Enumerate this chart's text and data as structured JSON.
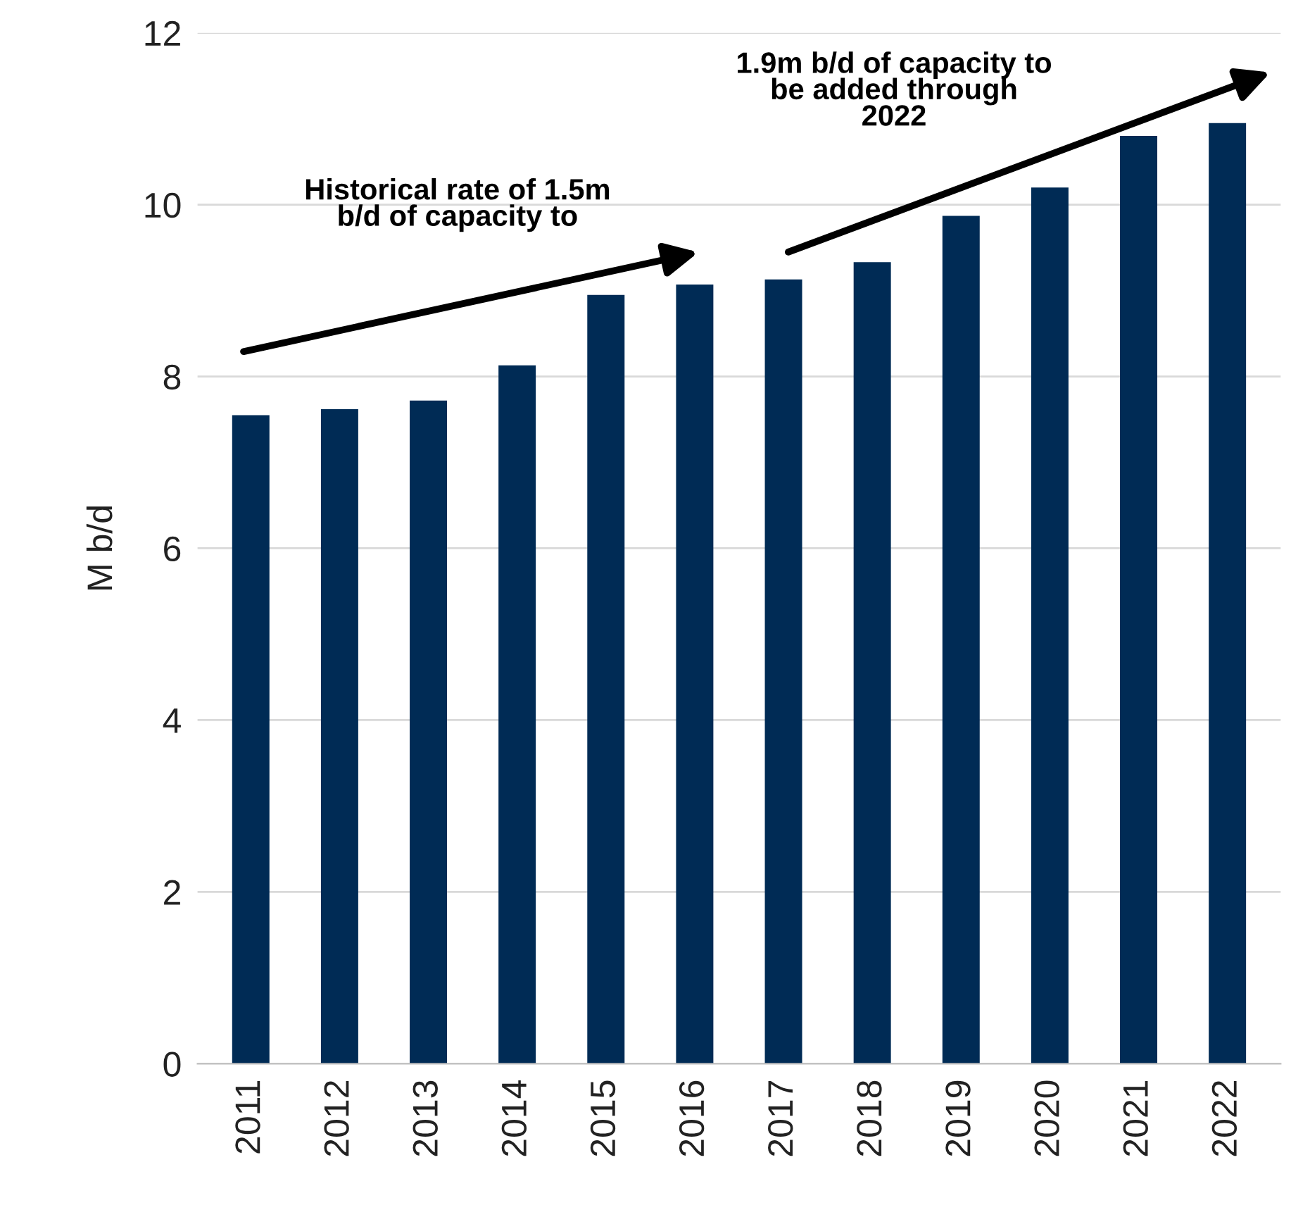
{
  "chart_data": {
    "type": "bar",
    "ylabel": "M b/d",
    "categories": [
      "2011",
      "2012",
      "2013",
      "2014",
      "2015",
      "2016",
      "2017",
      "2018",
      "2019",
      "2020",
      "2021",
      "2022"
    ],
    "values": [
      7.55,
      7.62,
      7.72,
      8.13,
      8.95,
      9.07,
      9.13,
      9.33,
      9.87,
      10.2,
      10.8,
      10.95
    ],
    "color": "#002b55",
    "ylim": [
      0,
      12
    ],
    "yticks": [
      0,
      2,
      4,
      6,
      8,
      10,
      12
    ],
    "grid": "y",
    "annotations": [
      "Historical rate of 1.5m\nb/d of capacity to",
      "1.9m b/d of capacity to\nbe added through\n2022"
    ]
  }
}
